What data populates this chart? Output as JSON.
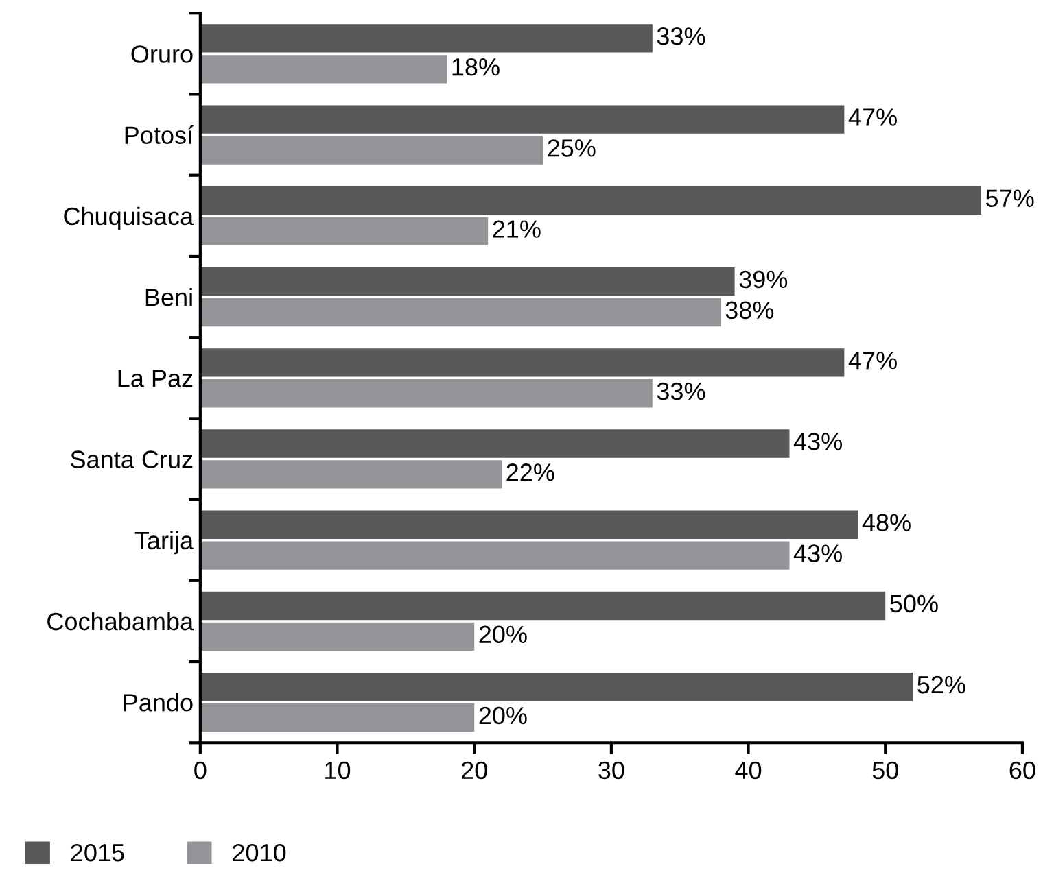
{
  "chart_data": {
    "type": "bar",
    "orientation": "horizontal",
    "categories": [
      "Oruro",
      "Potosí",
      "Chuquisaca",
      "Beni",
      "La Paz",
      "Santa Cruz",
      "Tarija",
      "Cochabamba",
      "Pando"
    ],
    "series": [
      {
        "name": "2015",
        "color": "#58585a",
        "values": [
          33,
          47,
          57,
          39,
          47,
          43,
          48,
          50,
          52
        ],
        "value_labels": [
          "33%",
          "47%",
          "57%",
          "39%",
          "47%",
          "43%",
          "48%",
          "50%",
          "52%"
        ]
      },
      {
        "name": "2010",
        "color": "#939598",
        "values": [
          18,
          25,
          21,
          38,
          33,
          22,
          43,
          20,
          20
        ],
        "value_labels": [
          "18%",
          "25%",
          "21%",
          "38%",
          "33%",
          "22%",
          "43%",
          "20%",
          "20%"
        ]
      }
    ],
    "xlim": [
      0,
      60
    ],
    "xticks": [
      0,
      10,
      20,
      30,
      40,
      50,
      60
    ],
    "grid": false,
    "legend": "bottom left"
  }
}
